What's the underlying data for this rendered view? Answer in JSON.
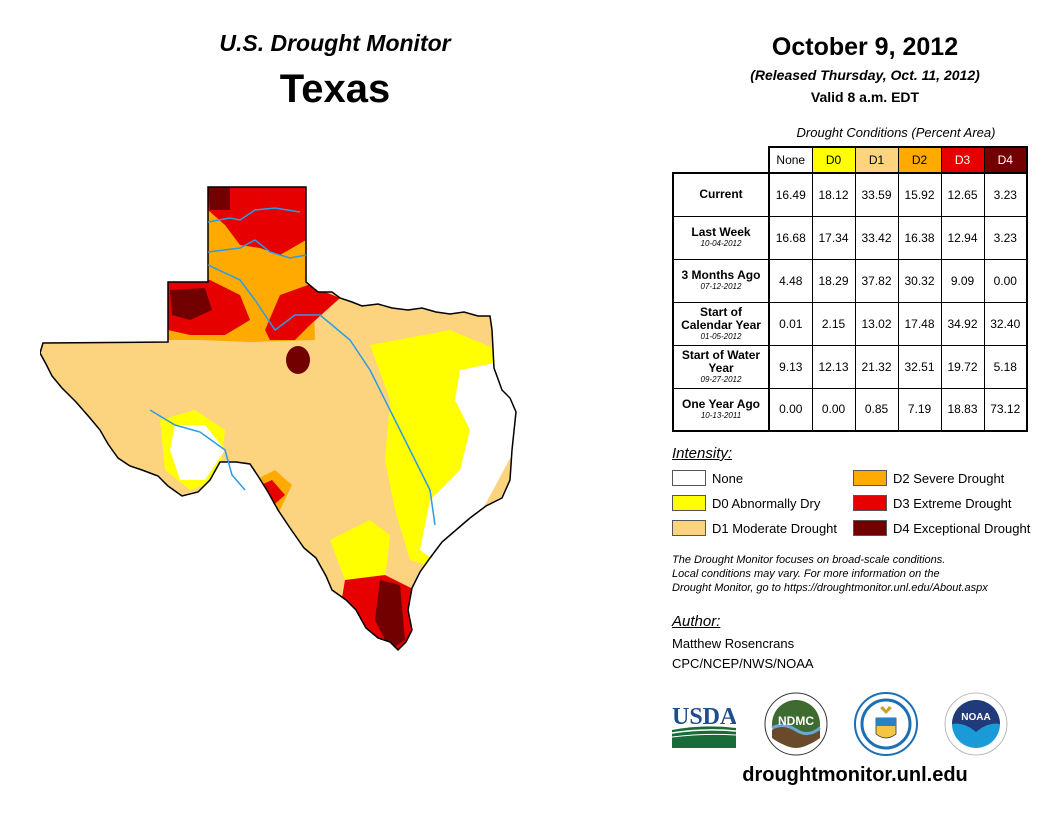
{
  "header": {
    "title": "U.S. Drought Monitor",
    "state": "Texas",
    "date": "October 9, 2012",
    "released": "(Released Thursday, Oct. 11, 2012)",
    "valid": "Valid 8 a.m. EDT"
  },
  "table": {
    "caption": "Drought Conditions (Percent Area)",
    "columns": [
      {
        "label": "None",
        "color": "#ffffff",
        "text_color": "#000000"
      },
      {
        "label": "D0",
        "color": "#ffff00",
        "text_color": "#000000"
      },
      {
        "label": "D1",
        "color": "#fcd37f",
        "text_color": "#000000"
      },
      {
        "label": "D2",
        "color": "#ffaa00",
        "text_color": "#000000"
      },
      {
        "label": "D3",
        "color": "#e60000",
        "text_color": "#ffffff"
      },
      {
        "label": "D4",
        "color": "#730000",
        "text_color": "#ffffff"
      }
    ],
    "rows": [
      {
        "label": "Current",
        "date": "",
        "values": [
          "16.49",
          "18.12",
          "33.59",
          "15.92",
          "12.65",
          "3.23"
        ]
      },
      {
        "label": "Last Week",
        "date": "10-04-2012",
        "values": [
          "16.68",
          "17.34",
          "33.42",
          "16.38",
          "12.94",
          "3.23"
        ]
      },
      {
        "label": "3 Months Ago",
        "date": "07-12-2012",
        "values": [
          "4.48",
          "18.29",
          "37.82",
          "30.32",
          "9.09",
          "0.00"
        ]
      },
      {
        "label": "Start of Calendar Year",
        "date": "01-05-2012",
        "values": [
          "0.01",
          "2.15",
          "13.02",
          "17.48",
          "34.92",
          "32.40"
        ]
      },
      {
        "label": "Start of Water Year",
        "date": "09-27-2012",
        "values": [
          "9.13",
          "12.13",
          "21.32",
          "32.51",
          "19.72",
          "5.18"
        ]
      },
      {
        "label": "One Year Ago",
        "date": "10-13-2011",
        "values": [
          "0.00",
          "0.00",
          "0.85",
          "7.19",
          "18.83",
          "73.12"
        ]
      }
    ]
  },
  "legend": {
    "heading": "Intensity:",
    "items": [
      {
        "label": "None",
        "color": "#ffffff"
      },
      {
        "label": "D0 Abnormally Dry",
        "color": "#ffff00"
      },
      {
        "label": "D1 Moderate Drought",
        "color": "#fcd37f"
      },
      {
        "label": "D2 Severe Drought",
        "color": "#ffaa00"
      },
      {
        "label": "D3 Extreme Drought",
        "color": "#e60000"
      },
      {
        "label": "D4 Exceptional Drought",
        "color": "#730000"
      }
    ]
  },
  "note": {
    "line1": "The Drought Monitor focuses on broad-scale conditions.",
    "line2": "Local conditions may vary. For more information on the",
    "line3": "Drought Monitor, go to https://droughtmonitor.unl.edu/About.aspx"
  },
  "author": {
    "heading": "Author:",
    "name": "Matthew Rosencrans",
    "org": "CPC/NCEP/NWS/NOAA"
  },
  "logos": {
    "usda": "USDA",
    "ndmc": "NDMC",
    "noaa": "NOAA"
  },
  "website": "droughtmonitor.unl.edu"
}
